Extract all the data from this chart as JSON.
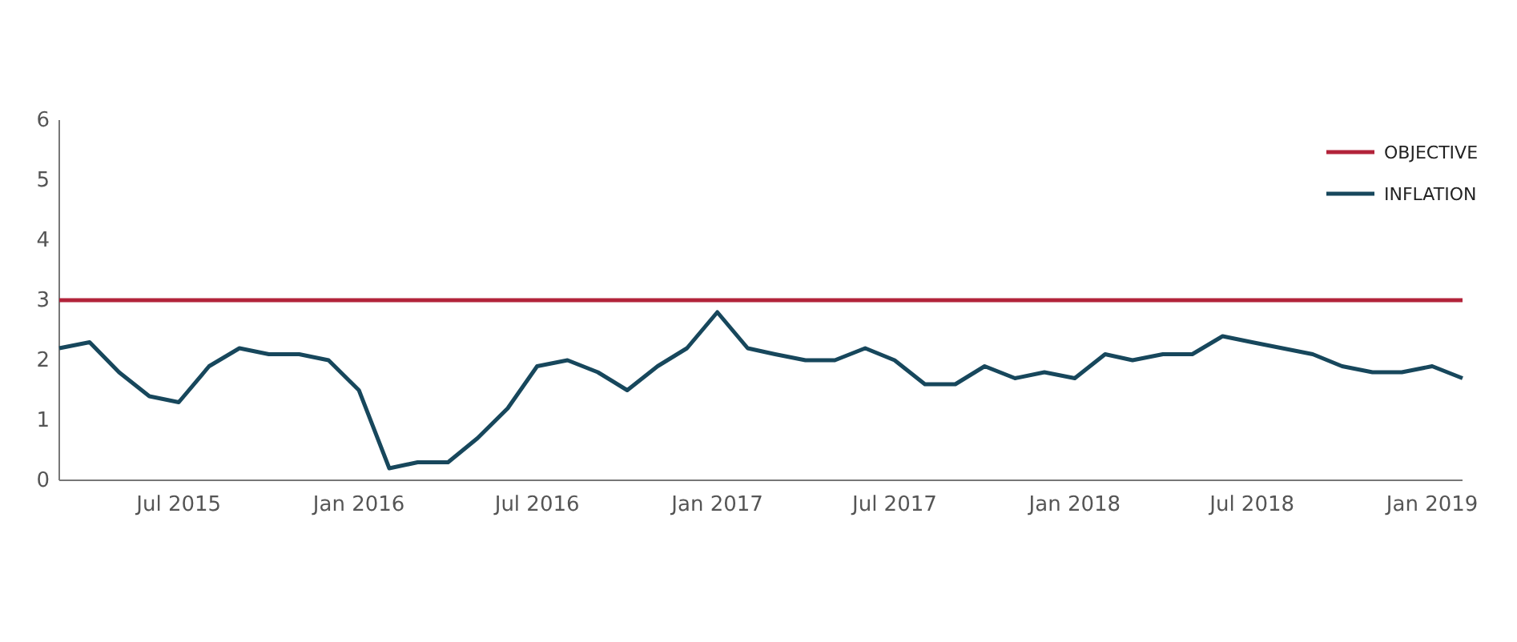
{
  "chart_data": {
    "type": "line",
    "x": [
      "2015-03",
      "2015-04",
      "2015-05",
      "2015-06",
      "2015-07",
      "2015-08",
      "2015-09",
      "2015-10",
      "2015-11",
      "2015-12",
      "2016-01",
      "2016-02",
      "2016-03",
      "2016-04",
      "2016-05",
      "2016-06",
      "2016-07",
      "2016-08",
      "2016-09",
      "2016-10",
      "2016-11",
      "2016-12",
      "2017-01",
      "2017-02",
      "2017-03",
      "2017-04",
      "2017-05",
      "2017-06",
      "2017-07",
      "2017-08",
      "2017-09",
      "2017-10",
      "2017-11",
      "2017-12",
      "2018-01",
      "2018-02",
      "2018-03",
      "2018-04",
      "2018-05",
      "2018-06",
      "2018-07",
      "2018-08",
      "2018-09",
      "2018-10",
      "2018-11",
      "2018-12",
      "2019-01",
      "2019-02"
    ],
    "series": [
      {
        "name": "OBJECTIVE",
        "color": "#b2233a",
        "x": [
          "2015-03",
          "2019-02"
        ],
        "values": [
          3,
          3
        ]
      },
      {
        "name": "INFLATION",
        "color": "#17475c",
        "values": [
          2.2,
          2.3,
          1.8,
          1.4,
          1.3,
          1.9,
          2.2,
          2.1,
          2.1,
          2.0,
          1.5,
          0.2,
          0.3,
          0.3,
          0.7,
          1.2,
          1.9,
          2.0,
          1.8,
          1.5,
          1.9,
          2.2,
          2.8,
          2.2,
          2.1,
          2.0,
          2.0,
          2.2,
          2.0,
          1.6,
          1.6,
          1.9,
          1.7,
          1.8,
          1.7,
          2.1,
          2.0,
          2.1,
          2.1,
          2.4,
          2.3,
          2.2,
          2.1,
          1.9,
          1.8,
          1.8,
          1.9,
          1.7
        ]
      }
    ],
    "xlim": [
      "2015-03",
      "2019-02"
    ],
    "xticks": [
      {
        "value": "2015-07",
        "label": "Jul 2015"
      },
      {
        "value": "2016-01",
        "label": "Jan 2016"
      },
      {
        "value": "2016-07",
        "label": "Jul 2016"
      },
      {
        "value": "2017-01",
        "label": "Jan 2017"
      },
      {
        "value": "2017-07",
        "label": "Jul 2017"
      },
      {
        "value": "2018-01",
        "label": "Jan 2018"
      },
      {
        "value": "2018-07",
        "label": "Jul 2018"
      },
      {
        "value": "2019-01",
        "label": "Jan 2019"
      }
    ],
    "ylim": [
      0,
      6
    ],
    "yticks": [
      0,
      1,
      2,
      3,
      4,
      5,
      6
    ],
    "legend": "top right",
    "grid": false,
    "marker": "none",
    "line_style": "solid"
  }
}
